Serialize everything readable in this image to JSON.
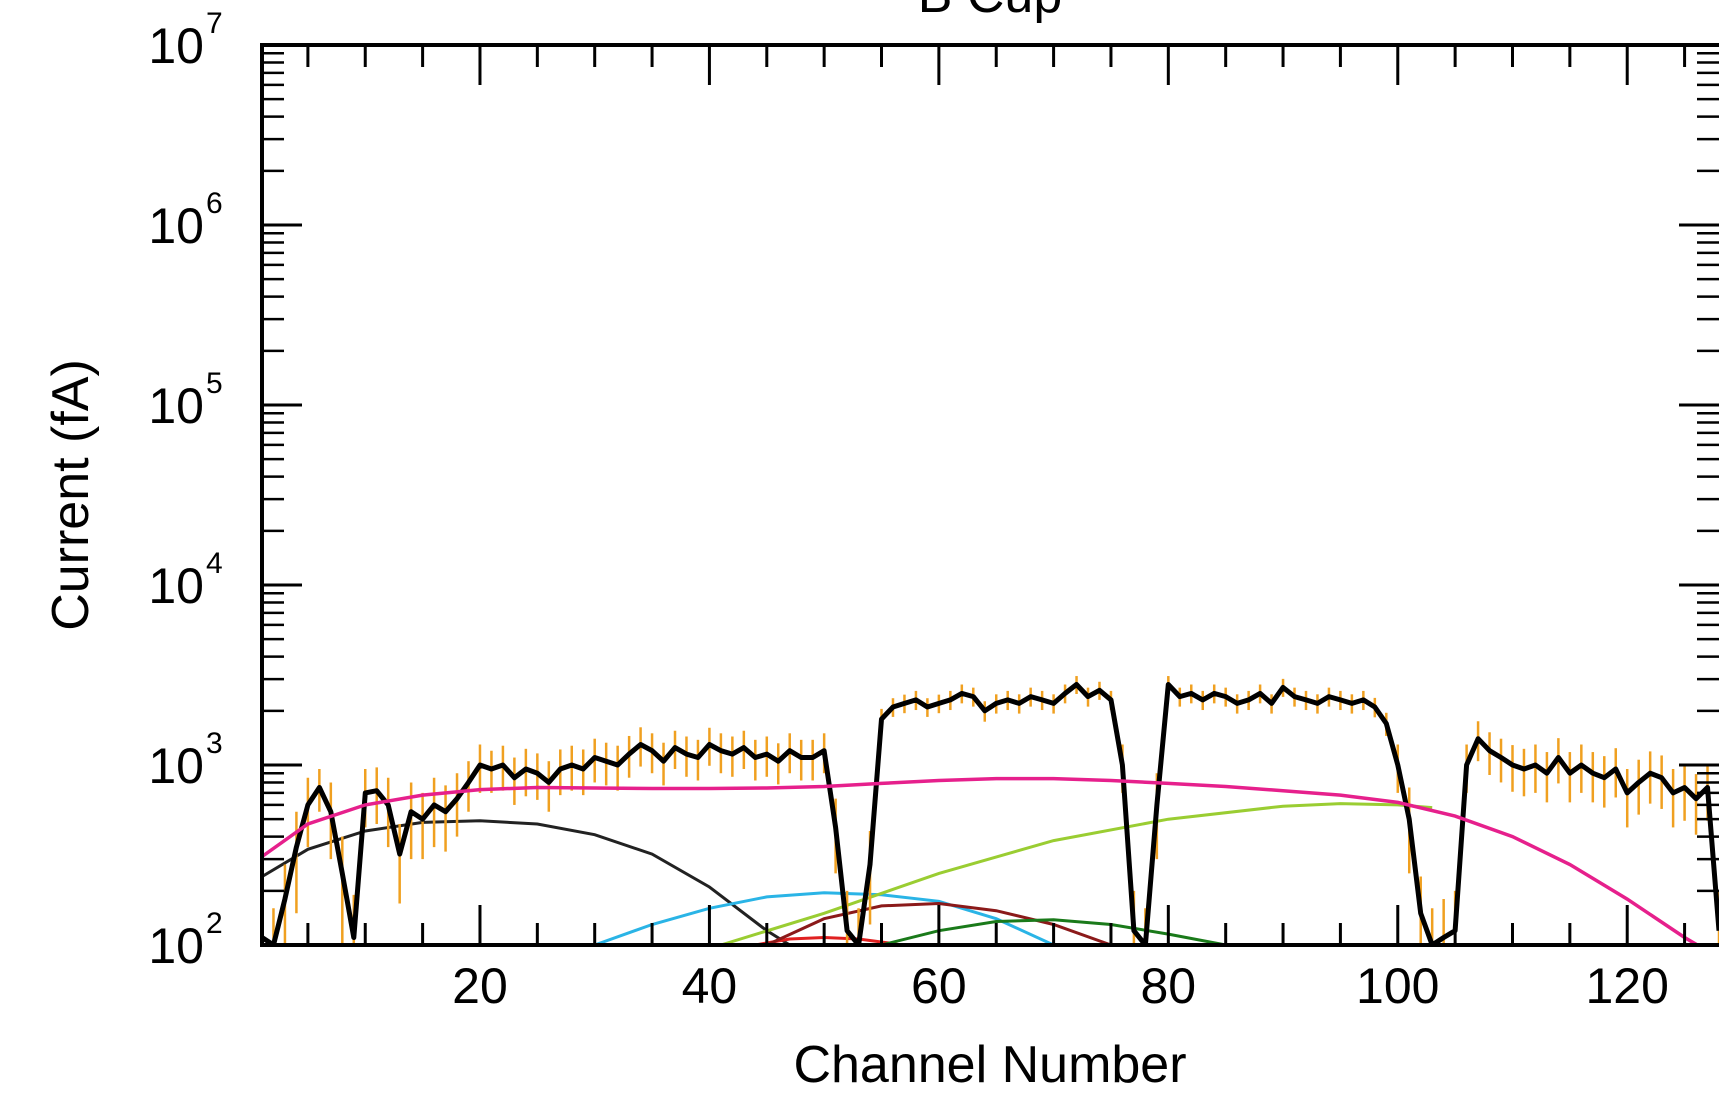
{
  "chart_data": {
    "type": "line",
    "title": "B Cup",
    "xlabel": "Channel Number",
    "ylabel": "Current (fA)",
    "xlim": [
      1,
      128
    ],
    "ylim": [
      100,
      10000000
    ],
    "yscale": "log",
    "x_ticks": [
      20,
      40,
      60,
      80,
      100,
      120
    ],
    "x_tick_labels": [
      "20",
      "40",
      "60",
      "80",
      "100",
      "120"
    ],
    "y_ticks": [
      {
        "value": 100,
        "base": "10",
        "exp": "2"
      },
      {
        "value": 1000,
        "base": "10",
        "exp": "3"
      },
      {
        "value": 10000,
        "base": "10",
        "exp": "4"
      },
      {
        "value": 100000,
        "base": "10",
        "exp": "5"
      },
      {
        "value": 1000000,
        "base": "10",
        "exp": "6"
      },
      {
        "value": 10000000,
        "base": "10",
        "exp": "7"
      }
    ],
    "grid": false,
    "series": [
      {
        "kind": "measured",
        "color": "#000000",
        "errorbar_color": "#f0a020",
        "x": [
          1,
          2,
          3,
          4,
          5,
          6,
          7,
          8,
          9,
          10,
          11,
          12,
          13,
          14,
          15,
          16,
          17,
          18,
          19,
          20,
          21,
          22,
          23,
          24,
          25,
          26,
          27,
          28,
          29,
          30,
          31,
          32,
          33,
          34,
          35,
          36,
          37,
          38,
          39,
          40,
          41,
          42,
          43,
          44,
          45,
          46,
          47,
          48,
          49,
          50,
          51,
          52,
          53,
          54,
          55,
          56,
          57,
          58,
          59,
          60,
          61,
          62,
          63,
          64,
          65,
          66,
          67,
          68,
          69,
          70,
          71,
          72,
          73,
          74,
          75,
          76,
          77,
          78,
          79,
          80,
          81,
          82,
          83,
          84,
          85,
          86,
          87,
          88,
          89,
          90,
          91,
          92,
          93,
          94,
          95,
          96,
          97,
          98,
          99,
          100,
          101,
          102,
          103,
          104,
          105,
          106,
          107,
          108,
          109,
          110,
          111,
          112,
          113,
          114,
          115,
          116,
          117,
          118,
          119,
          120,
          121,
          122,
          123,
          124,
          125,
          126,
          127,
          128
        ],
        "y": [
          110,
          100,
          180,
          350,
          600,
          750,
          550,
          250,
          110,
          700,
          720,
          600,
          320,
          550,
          500,
          600,
          550,
          650,
          800,
          1000,
          950,
          1000,
          850,
          950,
          900,
          800,
          950,
          1000,
          950,
          1100,
          1050,
          1000,
          1150,
          1300,
          1200,
          1050,
          1250,
          1150,
          1100,
          1300,
          1200,
          1150,
          1250,
          1100,
          1150,
          1050,
          1200,
          1100,
          1100,
          1200,
          450,
          120,
          100,
          280,
          1800,
          2100,
          2200,
          2300,
          2100,
          2200,
          2300,
          2500,
          2400,
          2000,
          2200,
          2300,
          2200,
          2400,
          2300,
          2200,
          2500,
          2800,
          2400,
          2600,
          2300,
          1000,
          120,
          100,
          600,
          2800,
          2400,
          2500,
          2300,
          2500,
          2400,
          2200,
          2300,
          2500,
          2200,
          2700,
          2400,
          2300,
          2200,
          2400,
          2300,
          2200,
          2300,
          2100,
          1700,
          1000,
          500,
          150,
          100,
          110,
          120,
          1000,
          1400,
          1200,
          1100,
          1000,
          950,
          1000,
          900,
          1100,
          900,
          1000,
          900,
          850,
          950,
          700,
          800,
          900,
          850,
          700,
          750,
          650,
          750,
          120
        ],
        "errors": [
          60,
          60,
          100,
          200,
          250,
          200,
          250,
          150,
          80,
          250,
          250,
          250,
          150,
          250,
          200,
          250,
          220,
          250,
          250,
          300,
          250,
          280,
          250,
          280,
          260,
          250,
          270,
          280,
          270,
          300,
          280,
          280,
          300,
          320,
          300,
          280,
          300,
          290,
          280,
          310,
          300,
          290,
          300,
          280,
          290,
          270,
          300,
          280,
          280,
          300,
          200,
          80,
          60,
          150,
          250,
          250,
          260,
          280,
          250,
          260,
          280,
          300,
          290,
          260,
          270,
          280,
          270,
          290,
          280,
          270,
          300,
          320,
          290,
          300,
          280,
          300,
          80,
          60,
          300,
          320,
          290,
          300,
          280,
          300,
          290,
          270,
          280,
          300,
          270,
          310,
          290,
          280,
          270,
          290,
          280,
          270,
          280,
          260,
          250,
          300,
          250,
          90,
          60,
          70,
          80,
          300,
          350,
          320,
          300,
          290,
          280,
          300,
          280,
          310,
          280,
          300,
          280,
          270,
          290,
          250,
          270,
          290,
          280,
          250,
          260,
          240,
          260,
          80
        ]
      },
      {
        "kind": "fit",
        "color": "#e6208c",
        "shape": "total",
        "x": [
          1,
          5,
          10,
          15,
          20,
          25,
          30,
          35,
          40,
          45,
          50,
          55,
          60,
          65,
          70,
          75,
          80,
          85,
          90,
          95,
          100,
          105,
          110,
          115,
          120,
          125,
          128
        ],
        "y": [
          310,
          470,
          600,
          680,
          730,
          750,
          745,
          740,
          740,
          745,
          760,
          790,
          820,
          840,
          840,
          820,
          790,
          760,
          720,
          680,
          620,
          520,
          400,
          280,
          180,
          110,
          85
        ]
      },
      {
        "kind": "fit",
        "color": "#222222",
        "x": [
          1,
          5,
          10,
          15,
          20,
          25,
          30,
          35,
          40,
          45,
          47
        ],
        "y": [
          240,
          340,
          430,
          480,
          490,
          470,
          410,
          320,
          210,
          120,
          100
        ]
      },
      {
        "kind": "fit",
        "color": "#2ab4e6",
        "x": [
          30,
          35,
          40,
          45,
          50,
          55,
          60,
          65,
          70
        ],
        "y": [
          100,
          130,
          160,
          185,
          195,
          190,
          175,
          140,
          100
        ]
      },
      {
        "kind": "fit",
        "color": "#e02020",
        "x": [
          44,
          47,
          50,
          53,
          56,
          58
        ],
        "y": [
          100,
          108,
          110,
          108,
          102,
          96
        ]
      },
      {
        "kind": "fit",
        "color": "#8b1a1a",
        "x": [
          45,
          50,
          55,
          60,
          65,
          70,
          75
        ],
        "y": [
          100,
          140,
          165,
          170,
          155,
          130,
          100
        ]
      },
      {
        "kind": "fit",
        "color": "#9acd32",
        "x": [
          41,
          50,
          60,
          70,
          80,
          90,
          95,
          100,
          103
        ],
        "y": [
          100,
          150,
          250,
          380,
          500,
          590,
          610,
          600,
          580
        ]
      },
      {
        "kind": "fit",
        "color": "#1a7a1a",
        "x": [
          55,
          60,
          65,
          70,
          75,
          80,
          85
        ],
        "y": [
          100,
          120,
          135,
          138,
          130,
          115,
          100
        ]
      }
    ]
  }
}
